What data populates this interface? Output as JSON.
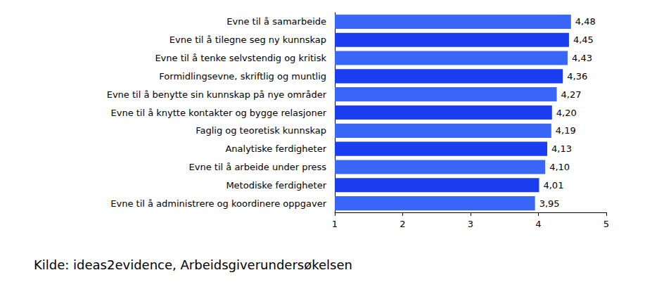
{
  "chart_data": {
    "type": "bar",
    "orientation": "horizontal",
    "categories": [
      "Evne til å samarbeide",
      "Evne til å tilegne seg ny kunnskap",
      "Evne til å tenke selvstendig og kritisk",
      "Formidlingsevne, skriftlig og muntlig",
      "Evne til å benytte sin kunnskap på nye områder",
      "Evne til å knytte kontakter og bygge relasjoner",
      "Faglig og teoretisk kunnskap",
      "Analytiske ferdigheter",
      "Evne til å arbeide under press",
      "Metodiske ferdigheter",
      "Evne til å administrere og koordinere oppgaver"
    ],
    "values": [
      4.48,
      4.45,
      4.43,
      4.36,
      4.27,
      4.2,
      4.19,
      4.13,
      4.1,
      4.01,
      3.95
    ],
    "value_labels": [
      "4,48",
      "4,45",
      "4,43",
      "4,36",
      "4,27",
      "4,20",
      "4,19",
      "4,13",
      "4,10",
      "4,01",
      "3,95"
    ],
    "colors": [
      "#3a66f7",
      "#1a3df0",
      "#3a66f7",
      "#1a3df0",
      "#3a66f7",
      "#1a3df0",
      "#3a66f7",
      "#1a3df0",
      "#3a66f7",
      "#1a3df0",
      "#3a66f7"
    ],
    "xlim": [
      1,
      5
    ],
    "xticks": [
      1,
      2,
      3,
      4,
      5
    ],
    "grid": false,
    "data_labels": true,
    "annotation": "Kilde: ideas2evidence, Arbeidsgiverundersøkelsen"
  }
}
